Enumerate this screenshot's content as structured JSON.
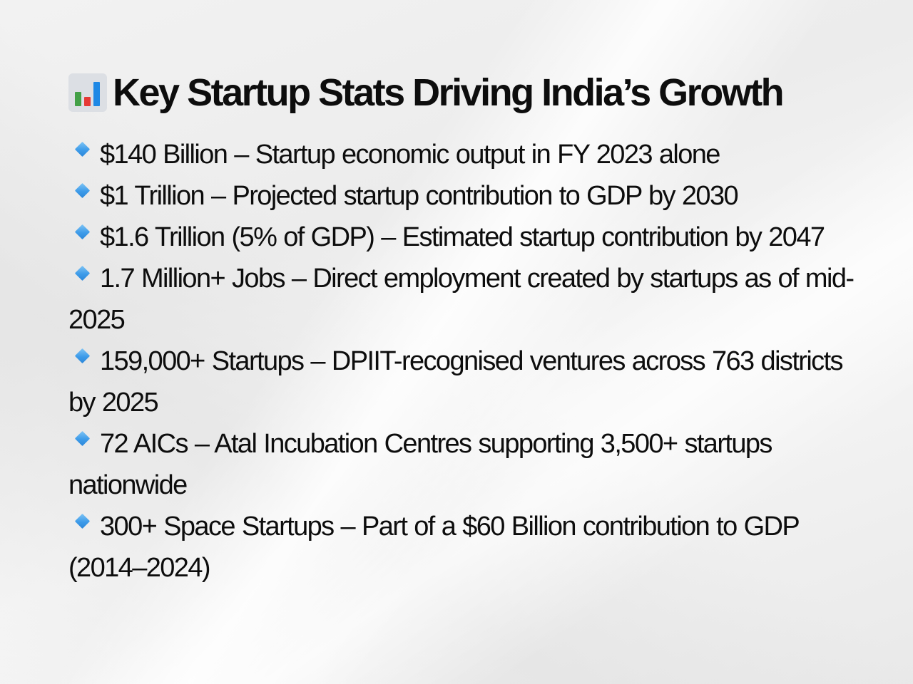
{
  "title": {
    "icon": "bar-chart-emoji",
    "text": "Key Startup Stats Driving India’s Growth"
  },
  "stats": [
    {
      "icon": "blue-diamond-icon",
      "text": "$140 Billion – Startup economic output in FY 2023 alone"
    },
    {
      "icon": "blue-diamond-icon",
      "text": "$1 Trillion – Projected startup contribution to GDP by 2030"
    },
    {
      "icon": "blue-diamond-icon",
      "text": "$1.6 Trillion (5% of GDP) – Estimated startup contribution by 2047"
    },
    {
      "icon": "blue-diamond-icon",
      "text": "1.7 Million+ Jobs – Direct employment created by startups as of mid-2025"
    },
    {
      "icon": "blue-diamond-icon",
      "text": "159,000+ Startups – DPIIT-recognised ventures across 763 districts by 2025"
    },
    {
      "icon": "blue-diamond-icon",
      "text": "72 AICs – Atal Incubation Centres supporting 3,500+ startups nationwide"
    },
    {
      "icon": "blue-diamond-icon",
      "text": "300+ Space Startups – Part of a $60 Billion contribution to GDP (2014–2024)"
    }
  ],
  "colors": {
    "bullet": "#3d9be9",
    "text": "#0d0d0d",
    "background": "#efefef"
  }
}
